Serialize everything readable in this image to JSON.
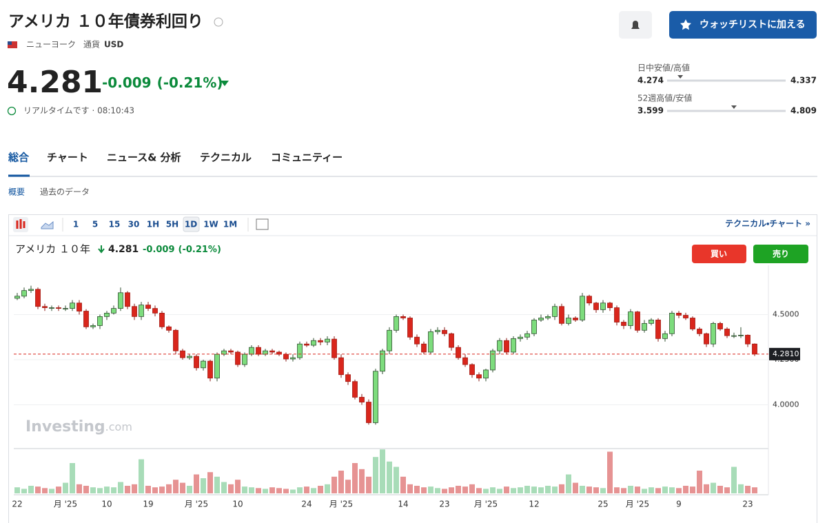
{
  "header": {
    "title": "アメリカ １０年債券利回り",
    "exchange": "ニューヨーク",
    "currency_label": "通貨",
    "currency": "USD",
    "watchlist_button": "ウォッチリストに加える"
  },
  "quote": {
    "price": 4.281,
    "change": -0.009,
    "change_pct": "(-0.21%)",
    "realtime": "リアルタイムです · 08:10:43"
  },
  "ranges": [
    {
      "label": "日中安値/高値",
      "low": 4.274,
      "high": 4.337
    },
    {
      "label": "52週高値/安値",
      "low": 3.599,
      "high": 4.809
    }
  ],
  "tabs": [
    "総合",
    "チャート",
    "ニュース& 分析",
    "テクニカル",
    "コミュニティー"
  ],
  "subtabs": [
    "概要",
    "過去のデータ"
  ],
  "toolbar": {
    "intervals": [
      "1",
      "5",
      "15",
      "30",
      "1H",
      "5H",
      "1D",
      "1W",
      "1M"
    ],
    "link": "テクニカル・チャート »"
  },
  "chart_legend": {
    "name": "アメリカ １０年",
    "buy": "買い",
    "sell": "売り"
  },
  "chart_data": {
    "type": "candlestick",
    "watermark": [
      "Investing",
      ".com"
    ],
    "categories": [
      "22",
      null,
      null,
      null,
      null,
      null,
      null,
      "月 '25",
      null,
      null,
      null,
      null,
      null,
      "10",
      null,
      null,
      null,
      null,
      null,
      "19",
      null,
      null,
      null,
      null,
      null,
      null,
      "月 '25",
      null,
      null,
      null,
      null,
      null,
      "10",
      null,
      null,
      null,
      null,
      null,
      null,
      null,
      null,
      null,
      "24",
      null,
      null,
      null,
      null,
      "月 '25",
      null,
      null,
      null,
      null,
      null,
      null,
      null,
      null,
      "14",
      null,
      null,
      null,
      null,
      null,
      "23",
      null,
      null,
      null,
      null,
      null,
      "月 '25",
      null,
      null,
      null,
      null,
      null,
      null,
      "12",
      null,
      null,
      null,
      null,
      null,
      null,
      null,
      null,
      null,
      "25",
      null,
      null,
      null,
      null,
      "月 '25",
      null,
      null,
      null,
      null,
      null,
      "9",
      null,
      null,
      null,
      null,
      null,
      null,
      null,
      null,
      null,
      "23",
      null
    ],
    "open": [
      4.59,
      4.602,
      4.633,
      4.64,
      4.545,
      4.538,
      4.538,
      4.534,
      4.534,
      4.564,
      4.519,
      4.432,
      4.439,
      4.489,
      4.508,
      4.534,
      4.621,
      4.545,
      4.489,
      4.553,
      4.534,
      4.508,
      4.432,
      4.413,
      4.299,
      4.261,
      4.269,
      4.205,
      4.242,
      4.148,
      4.28,
      4.299,
      4.292,
      4.223,
      4.28,
      4.318,
      4.28,
      4.299,
      4.292,
      4.28,
      4.254,
      4.261,
      4.337,
      4.33,
      4.356,
      4.348,
      4.364,
      4.261,
      4.167,
      4.129,
      4.042,
      4.015,
      3.901,
      4.186,
      4.299,
      4.413,
      4.489,
      4.481,
      4.375,
      4.337,
      4.292,
      4.405,
      4.413,
      4.394,
      4.318,
      4.261,
      4.223,
      4.167,
      4.148,
      4.193,
      4.299,
      4.356,
      4.292,
      4.367,
      4.375,
      4.394,
      4.47,
      4.481,
      4.489,
      4.545,
      4.451,
      4.481,
      4.47,
      4.602,
      4.564,
      4.527,
      4.564,
      4.538,
      4.458,
      4.439,
      4.515,
      4.413,
      4.451,
      4.47,
      4.367,
      4.394,
      4.508,
      4.496,
      4.481,
      4.42,
      4.394,
      4.337,
      4.451,
      4.42,
      4.383,
      4.383,
      4.386,
      4.337
    ],
    "high": [
      4.62,
      4.65,
      4.66,
      4.65,
      4.56,
      4.55,
      4.55,
      4.55,
      4.58,
      4.58,
      4.53,
      4.45,
      4.5,
      4.52,
      4.55,
      4.65,
      4.63,
      4.56,
      4.57,
      4.57,
      4.55,
      4.52,
      4.44,
      4.42,
      4.31,
      4.28,
      4.28,
      4.25,
      4.25,
      4.29,
      4.31,
      4.31,
      4.3,
      4.29,
      4.33,
      4.33,
      4.31,
      4.31,
      4.3,
      4.29,
      4.28,
      4.35,
      4.35,
      4.37,
      4.37,
      4.38,
      4.38,
      4.28,
      4.18,
      4.14,
      4.06,
      4.03,
      4.2,
      4.31,
      4.43,
      4.5,
      4.5,
      4.49,
      4.39,
      4.35,
      4.42,
      4.43,
      4.43,
      4.4,
      4.33,
      4.28,
      4.23,
      4.18,
      4.2,
      4.31,
      4.37,
      4.37,
      4.38,
      4.39,
      4.41,
      4.48,
      4.5,
      4.5,
      4.56,
      4.56,
      4.5,
      4.49,
      4.62,
      4.61,
      4.57,
      4.58,
      4.57,
      4.55,
      4.47,
      4.53,
      4.52,
      4.47,
      4.48,
      4.48,
      4.41,
      4.52,
      4.52,
      4.51,
      4.49,
      4.43,
      4.4,
      4.46,
      4.46,
      4.43,
      4.4,
      4.43,
      4.39,
      4.34
    ],
    "low": [
      4.58,
      4.59,
      4.62,
      4.53,
      4.52,
      4.52,
      4.52,
      4.52,
      4.52,
      4.5,
      4.42,
      4.42,
      4.42,
      4.47,
      4.5,
      4.52,
      4.53,
      4.47,
      4.47,
      4.52,
      4.49,
      4.42,
      4.4,
      4.28,
      4.25,
      4.25,
      4.19,
      4.19,
      4.13,
      4.13,
      4.27,
      4.28,
      4.21,
      4.21,
      4.27,
      4.27,
      4.27,
      4.28,
      4.27,
      4.24,
      4.24,
      4.25,
      4.32,
      4.32,
      4.33,
      4.33,
      4.25,
      4.15,
      4.11,
      4.03,
      4.0,
      3.89,
      3.89,
      4.17,
      4.28,
      4.4,
      4.47,
      4.36,
      4.32,
      4.28,
      4.28,
      4.39,
      4.38,
      4.3,
      4.25,
      4.21,
      4.15,
      4.13,
      4.13,
      4.18,
      4.28,
      4.28,
      4.28,
      4.35,
      4.36,
      4.38,
      4.46,
      4.47,
      4.47,
      4.44,
      4.44,
      4.46,
      4.46,
      4.55,
      4.51,
      4.51,
      4.52,
      4.44,
      4.42,
      4.42,
      4.4,
      4.4,
      4.44,
      4.35,
      4.35,
      4.38,
      4.48,
      4.47,
      4.41,
      4.38,
      4.32,
      4.32,
      4.41,
      4.37,
      4.37,
      4.37,
      4.32,
      4.27
    ],
    "close": [
      4.602,
      4.633,
      4.64,
      4.545,
      4.538,
      4.538,
      4.534,
      4.534,
      4.564,
      4.519,
      4.432,
      4.439,
      4.489,
      4.508,
      4.534,
      4.621,
      4.545,
      4.489,
      4.553,
      4.534,
      4.508,
      4.432,
      4.413,
      4.299,
      4.261,
      4.269,
      4.205,
      4.242,
      4.148,
      4.28,
      4.299,
      4.292,
      4.223,
      4.28,
      4.318,
      4.28,
      4.299,
      4.292,
      4.28,
      4.254,
      4.261,
      4.337,
      4.33,
      4.356,
      4.348,
      4.364,
      4.261,
      4.167,
      4.129,
      4.042,
      4.015,
      3.901,
      4.186,
      4.299,
      4.413,
      4.489,
      4.481,
      4.375,
      4.337,
      4.292,
      4.405,
      4.413,
      4.394,
      4.318,
      4.261,
      4.223,
      4.167,
      4.148,
      4.193,
      4.299,
      4.356,
      4.292,
      4.367,
      4.375,
      4.394,
      4.47,
      4.481,
      4.489,
      4.545,
      4.451,
      4.481,
      4.47,
      4.602,
      4.564,
      4.527,
      4.564,
      4.538,
      4.458,
      4.439,
      4.515,
      4.413,
      4.451,
      4.47,
      4.367,
      4.394,
      4.508,
      4.496,
      4.481,
      4.42,
      4.394,
      4.337,
      4.451,
      4.42,
      4.383,
      4.383,
      4.386,
      4.337,
      4.281
    ],
    "volume": [
      8,
      6,
      10,
      9,
      7,
      6,
      9,
      14,
      40,
      12,
      10,
      8,
      7,
      9,
      8,
      15,
      10,
      12,
      45,
      10,
      8,
      9,
      12,
      18,
      14,
      10,
      25,
      20,
      28,
      22,
      15,
      12,
      18,
      9,
      8,
      7,
      6,
      8,
      7,
      6,
      5,
      8,
      9,
      7,
      10,
      12,
      22,
      30,
      18,
      40,
      32,
      22,
      48,
      58,
      42,
      35,
      22,
      12,
      10,
      8,
      9,
      7,
      6,
      8,
      10,
      9,
      12,
      7,
      6,
      8,
      6,
      9,
      7,
      8,
      10,
      9,
      8,
      10,
      9,
      12,
      25,
      14,
      10,
      9,
      8,
      7,
      55,
      8,
      7,
      10,
      9,
      6,
      8,
      7,
      9,
      8,
      7,
      10,
      9,
      30,
      12,
      14,
      10,
      8,
      35,
      12,
      10,
      8
    ],
    "ylim": [
      3.769,
      4.773
    ],
    "yticks": [
      {
        "value": 4,
        "label": "4.0000"
      },
      {
        "value": 4.25,
        "label": "4.2500"
      },
      {
        "value": 4.5,
        "label": "4.5000"
      }
    ],
    "last": {
      "value": 4.281,
      "label": "4.2810"
    },
    "grid": true,
    "up_color": "#7ddc7d",
    "down_color": "#d9261c",
    "up_volume_color": "#a8dcb8",
    "down_volume_color": "#e69393"
  }
}
